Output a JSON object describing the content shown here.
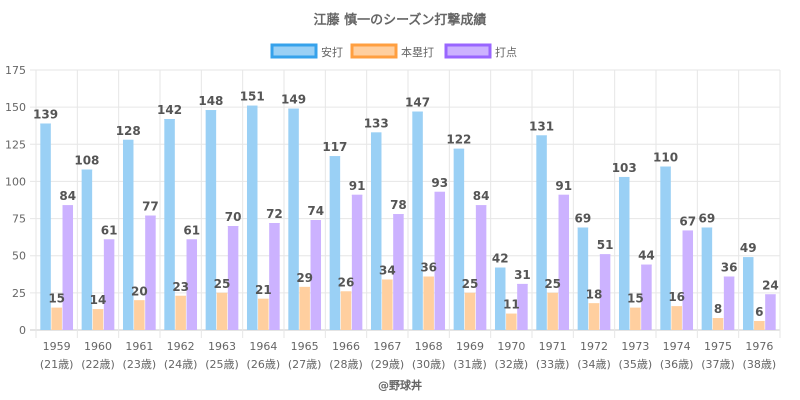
{
  "chart_data": {
    "type": "bar",
    "title": "江藤 慎一のシーズン打撃成績",
    "xlabel": "",
    "ylabel": "",
    "ylim": [
      0,
      175
    ],
    "yticks": [
      0,
      25,
      50,
      75,
      100,
      125,
      150,
      175
    ],
    "grid": true,
    "legend_position": "top",
    "categories": [
      "1959",
      "1960",
      "1961",
      "1962",
      "1963",
      "1964",
      "1965",
      "1966",
      "1967",
      "1968",
      "1969",
      "1970",
      "1971",
      "1972",
      "1973",
      "1974",
      "1975",
      "1976"
    ],
    "category_sublabels": [
      "(21歳)",
      "(22歳)",
      "(23歳)",
      "(24歳)",
      "(25歳)",
      "(26歳)",
      "(27歳)",
      "(28歳)",
      "(29歳)",
      "(30歳)",
      "(31歳)",
      "(32歳)",
      "(33歳)",
      "(34歳)",
      "(35歳)",
      "(36歳)",
      "(37歳)",
      "(38歳)"
    ],
    "series": [
      {
        "name": "安打",
        "fill": "#9ad0f5",
        "border": "#36a2eb",
        "values": [
          139,
          108,
          128,
          142,
          148,
          151,
          149,
          117,
          133,
          147,
          122,
          42,
          131,
          69,
          103,
          110,
          69,
          49
        ]
      },
      {
        "name": "本塁打",
        "fill": "#ffcf9f",
        "border": "#ff9f40",
        "values": [
          15,
          14,
          20,
          23,
          25,
          21,
          29,
          26,
          34,
          36,
          25,
          11,
          25,
          18,
          15,
          16,
          8,
          6
        ]
      },
      {
        "name": "打点",
        "fill": "#ccb2ff",
        "border": "#9966ff",
        "values": [
          84,
          61,
          77,
          61,
          70,
          72,
          74,
          91,
          78,
          93,
          84,
          31,
          91,
          51,
          44,
          67,
          36,
          24
        ]
      }
    ],
    "credit": "@野球丼"
  }
}
